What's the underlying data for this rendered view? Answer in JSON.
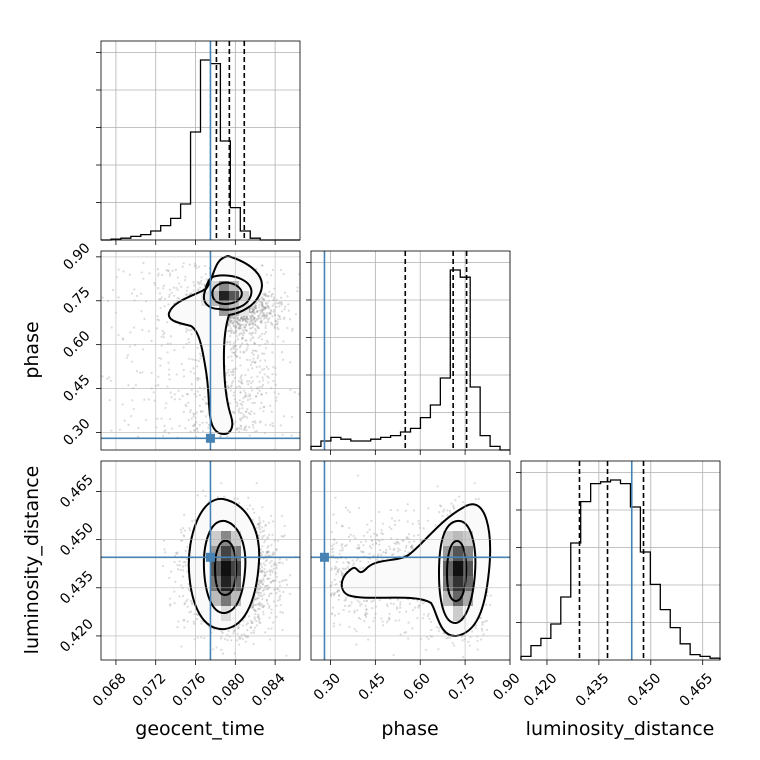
{
  "chart_data": {
    "type": "corner",
    "parameters": [
      "geocent_time",
      "phase",
      "luminosity_distance"
    ],
    "truths": {
      "geocent_time": 0.0775,
      "phase": 0.28,
      "luminosity_distance": 0.4445
    },
    "truth_color": "#4682b4",
    "panels": {
      "geocent_time": {
        "xlim": [
          0.0665,
          0.0865
        ],
        "ticks": [
          0.068,
          0.072,
          0.076,
          0.08,
          0.084
        ],
        "tick_labels": [
          "0.068",
          "0.072",
          "0.076",
          "0.080",
          "0.084"
        ],
        "quantiles": [
          0.0781,
          0.0794,
          0.0809
        ],
        "hist_counts": [
          0,
          0.005,
          0.01,
          0.02,
          0.03,
          0.05,
          0.08,
          0.12,
          0.2,
          0.6,
          1.0,
          0.98,
          0.55,
          0.18,
          0.05,
          0.01,
          0,
          0,
          0,
          0
        ]
      },
      "phase": {
        "xlim": [
          0.235,
          0.9
        ],
        "ticks": [
          0.3,
          0.45,
          0.6,
          0.75,
          0.9
        ],
        "tick_labels": [
          "0.30",
          "0.45",
          "0.60",
          "0.75",
          "0.90"
        ],
        "quantiles": [
          0.55,
          0.71,
          0.755
        ],
        "hist_counts": [
          0.02,
          0.05,
          0.07,
          0.06,
          0.05,
          0.05,
          0.06,
          0.07,
          0.08,
          0.1,
          0.12,
          0.18,
          0.25,
          0.4,
          1.0,
          0.96,
          0.35,
          0.08,
          0.02,
          0
        ]
      },
      "luminosity_distance": {
        "xlim": [
          0.4125,
          0.47
        ],
        "ticks": [
          0.42,
          0.435,
          0.45,
          0.465
        ],
        "tick_labels": [
          "0.420",
          "0.435",
          "0.450",
          "0.465"
        ],
        "quantiles": [
          0.4294,
          0.4375,
          0.4479
        ],
        "hist_counts": [
          0.02,
          0.08,
          0.12,
          0.2,
          0.35,
          0.65,
          0.88,
          0.98,
          0.99,
          1.0,
          0.98,
          0.85,
          0.6,
          0.42,
          0.28,
          0.18,
          0.09,
          0.03,
          0.02,
          0.01
        ]
      }
    },
    "y_panels": {
      "phase": {
        "ylim": [
          0.24,
          0.92
        ],
        "ticks": [
          0.3,
          0.45,
          0.6,
          0.75,
          0.9
        ],
        "tick_labels": [
          "0.30",
          "0.45",
          "0.60",
          "0.75",
          "0.90"
        ]
      },
      "luminosity_distance": {
        "ylim": [
          0.4125,
          0.4745
        ],
        "ticks": [
          0.42,
          0.435,
          0.45,
          0.465
        ],
        "tick_labels": [
          "0.420",
          "0.435",
          "0.450",
          "0.465"
        ]
      }
    },
    "axis_labels": {
      "x": [
        "geocent_time",
        "phase",
        "luminosity_distance"
      ],
      "y": [
        "phase",
        "luminosity_distance"
      ]
    },
    "grid": true
  }
}
